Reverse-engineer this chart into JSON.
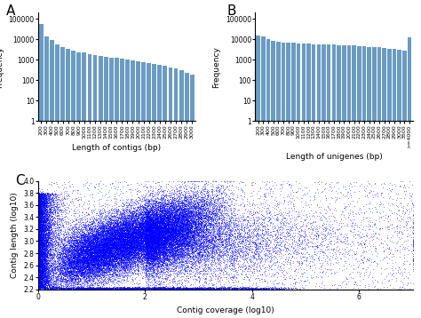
{
  "panel_a": {
    "label": "A",
    "xlabel": "Length of contigs (bp)",
    "ylabel": "Frequency",
    "bar_color": "#6a9bc3",
    "categories": [
      "200",
      "300",
      "400",
      "500",
      "600",
      "700",
      "800",
      "900",
      "1000",
      "1100",
      "1200",
      "1300",
      "1400",
      "1500",
      "1600",
      "1700",
      "1800",
      "1900",
      "2000",
      "2100",
      "2200",
      "2300",
      "2400",
      "2500",
      "2600",
      "2700",
      "2800",
      "2900",
      "3000"
    ],
    "values": [
      55000,
      14000,
      9000,
      5500,
      4000,
      3500,
      2800,
      2400,
      2200,
      1900,
      1750,
      1600,
      1450,
      1300,
      1250,
      1100,
      1000,
      900,
      850,
      780,
      720,
      640,
      580,
      510,
      440,
      380,
      300,
      240,
      180
    ],
    "ylim": [
      1,
      200000
    ],
    "yticks": [
      1,
      10,
      100,
      1000,
      10000,
      100000
    ],
    "yticklabels": [
      "1",
      "10",
      "100",
      "1000",
      "10000",
      "100000"
    ],
    "yscale": "log"
  },
  "panel_b": {
    "label": "B",
    "xlabel": "Length of unigenes (bp)",
    "ylabel": "Frequency",
    "bar_color": "#6a9bc3",
    "categories": [
      "200",
      "300",
      "400",
      "500",
      "600",
      "700",
      "800",
      "900",
      "1000",
      "1100",
      "1200",
      "1300",
      "1400",
      "1500",
      "1600",
      "1700",
      "1800",
      "1900",
      "2000",
      "2100",
      "2200",
      "2300",
      "2400",
      "2500",
      "2600",
      "2700",
      "2800",
      "2900",
      "3000",
      "3500",
      ">=4000"
    ],
    "values": [
      15000,
      13500,
      10000,
      8500,
      7800,
      7200,
      7000,
      6700,
      6400,
      6200,
      6000,
      5900,
      5700,
      5600,
      5500,
      5400,
      5300,
      5100,
      5000,
      4900,
      4700,
      4600,
      4400,
      4300,
      4100,
      3900,
      3600,
      3400,
      3200,
      2900,
      12000
    ],
    "ylim": [
      1,
      200000
    ],
    "yticks": [
      1,
      10,
      100,
      1000,
      10000,
      100000
    ],
    "yticklabels": [
      "1",
      "10",
      "100",
      "1000",
      "10000",
      "100000"
    ],
    "yscale": "log"
  },
  "panel_c": {
    "label": "C",
    "xlabel": "Contig coverage (log10)",
    "ylabel": "Contig length (log10)",
    "dot_color": "blue",
    "xlim": [
      0,
      7
    ],
    "ylim": [
      2.2,
      4.0
    ],
    "xticks": [
      0,
      2,
      4,
      6
    ],
    "yticks": [
      2.2,
      2.4,
      2.6,
      2.8,
      3.0,
      3.2,
      3.4,
      3.6,
      3.8,
      4.0
    ],
    "n_points": 60000,
    "seed": 42
  },
  "bg_color": "#ffffff",
  "panel_label_fontsize": 11,
  "axis_label_fontsize": 6.5,
  "tick_fontsize": 5.5
}
